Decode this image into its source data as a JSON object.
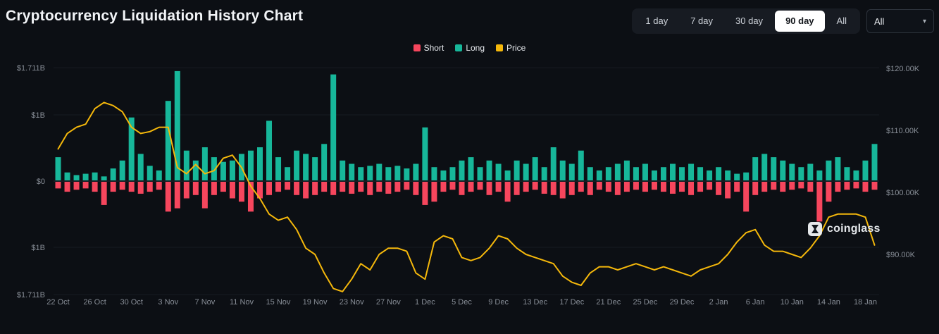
{
  "page": {
    "title": "Cryptocurrency Liquidation History Chart"
  },
  "toolbar": {
    "ranges": [
      "1 day",
      "7 day",
      "30 day",
      "90 day",
      "All"
    ],
    "selected": "90 day",
    "dropdown": {
      "value": "All"
    }
  },
  "legend": {
    "items": [
      {
        "label": "Short",
        "color": "#f6465d"
      },
      {
        "label": "Long",
        "color": "#17b79a"
      },
      {
        "label": "Price",
        "color": "#f5b80b"
      }
    ]
  },
  "watermark": {
    "text": "coinglass"
  },
  "chart_data": {
    "type": "bar",
    "subtype": "diverging-bars-with-line-overlay",
    "title": "Cryptocurrency Liquidation History Chart",
    "legend_position": "top-center",
    "grid": "horizontal-faint",
    "categories": [
      "22 Oct",
      "23 Oct",
      "24 Oct",
      "25 Oct",
      "26 Oct",
      "27 Oct",
      "28 Oct",
      "29 Oct",
      "30 Oct",
      "31 Oct",
      "1 Nov",
      "2 Nov",
      "3 Nov",
      "4 Nov",
      "5 Nov",
      "6 Nov",
      "7 Nov",
      "8 Nov",
      "9 Nov",
      "10 Nov",
      "11 Nov",
      "12 Nov",
      "13 Nov",
      "14 Nov",
      "15 Nov",
      "16 Nov",
      "17 Nov",
      "18 Nov",
      "19 Nov",
      "20 Nov",
      "21 Nov",
      "22 Nov",
      "23 Nov",
      "24 Nov",
      "25 Nov",
      "26 Nov",
      "27 Nov",
      "28 Nov",
      "29 Nov",
      "30 Nov",
      "1 Dec",
      "2 Dec",
      "3 Dec",
      "4 Dec",
      "5 Dec",
      "6 Dec",
      "7 Dec",
      "8 Dec",
      "9 Dec",
      "10 Dec",
      "11 Dec",
      "12 Dec",
      "13 Dec",
      "14 Dec",
      "15 Dec",
      "16 Dec",
      "17 Dec",
      "18 Dec",
      "19 Dec",
      "20 Dec",
      "21 Dec",
      "22 Dec",
      "23 Dec",
      "24 Dec",
      "25 Dec",
      "26 Dec",
      "27 Dec",
      "28 Dec",
      "29 Dec",
      "30 Dec",
      "31 Dec",
      "1 Jan",
      "2 Jan",
      "3 Jan",
      "4 Jan",
      "5 Jan",
      "6 Jan",
      "7 Jan",
      "8 Jan",
      "9 Jan",
      "10 Jan",
      "11 Jan",
      "12 Jan",
      "13 Jan",
      "14 Jan",
      "15 Jan",
      "16 Jan",
      "17 Jan",
      "18 Jan",
      "19 Jan"
    ],
    "series": [
      {
        "name": "Long",
        "type": "bar",
        "direction": "up",
        "color": "#17b79a",
        "unit": "$B",
        "values": [
          0.35,
          0.12,
          0.08,
          0.1,
          0.12,
          0.06,
          0.18,
          0.3,
          0.95,
          0.4,
          0.22,
          0.15,
          1.2,
          1.65,
          0.45,
          0.3,
          0.5,
          0.35,
          0.28,
          0.3,
          0.4,
          0.45,
          0.5,
          0.9,
          0.35,
          0.2,
          0.45,
          0.4,
          0.35,
          0.55,
          1.6,
          0.3,
          0.25,
          0.2,
          0.22,
          0.25,
          0.2,
          0.22,
          0.18,
          0.25,
          0.8,
          0.2,
          0.15,
          0.2,
          0.3,
          0.35,
          0.2,
          0.3,
          0.25,
          0.15,
          0.3,
          0.25,
          0.35,
          0.2,
          0.5,
          0.3,
          0.25,
          0.45,
          0.2,
          0.15,
          0.2,
          0.25,
          0.3,
          0.2,
          0.25,
          0.15,
          0.2,
          0.25,
          0.2,
          0.25,
          0.2,
          0.15,
          0.2,
          0.15,
          0.1,
          0.12,
          0.35,
          0.4,
          0.35,
          0.3,
          0.25,
          0.2,
          0.25,
          0.15,
          0.3,
          0.35,
          0.2,
          0.15,
          0.3,
          0.55
        ]
      },
      {
        "name": "Short",
        "type": "bar",
        "direction": "down",
        "color": "#f6465d",
        "unit": "$B",
        "values": [
          0.1,
          0.15,
          0.12,
          0.1,
          0.15,
          0.35,
          0.15,
          0.12,
          0.15,
          0.18,
          0.15,
          0.12,
          0.45,
          0.4,
          0.25,
          0.2,
          0.4,
          0.2,
          0.15,
          0.25,
          0.3,
          0.45,
          0.25,
          0.2,
          0.15,
          0.12,
          0.2,
          0.25,
          0.2,
          0.15,
          0.2,
          0.15,
          0.18,
          0.15,
          0.2,
          0.15,
          0.18,
          0.15,
          0.12,
          0.2,
          0.35,
          0.3,
          0.15,
          0.12,
          0.2,
          0.15,
          0.12,
          0.2,
          0.15,
          0.3,
          0.2,
          0.15,
          0.12,
          0.18,
          0.2,
          0.25,
          0.2,
          0.15,
          0.2,
          0.12,
          0.15,
          0.2,
          0.15,
          0.12,
          0.15,
          0.12,
          0.15,
          0.18,
          0.15,
          0.2,
          0.15,
          0.12,
          0.2,
          0.25,
          0.15,
          0.45,
          0.2,
          0.15,
          0.12,
          0.15,
          0.12,
          0.1,
          0.15,
          0.6,
          0.3,
          0.15,
          0.12,
          0.1,
          0.15,
          0.12
        ]
      },
      {
        "name": "Price",
        "type": "line",
        "axis": "right",
        "color": "#f5b80b",
        "unit": "$K",
        "values": [
          107.0,
          109.5,
          110.5,
          111.0,
          113.5,
          114.5,
          114.0,
          113.0,
          110.5,
          109.5,
          109.8,
          110.5,
          110.5,
          104.0,
          103.0,
          104.5,
          103.0,
          103.5,
          105.5,
          106.0,
          104.0,
          101.0,
          99.0,
          96.5,
          95.5,
          96.0,
          94.0,
          91.0,
          90.0,
          87.0,
          84.5,
          84.0,
          86.0,
          88.5,
          87.5,
          90.0,
          91.0,
          91.0,
          90.5,
          87.0,
          86.0,
          92.0,
          93.0,
          92.5,
          89.5,
          89.0,
          89.5,
          91.0,
          93.0,
          92.5,
          91.0,
          90.0,
          89.5,
          89.0,
          88.5,
          86.5,
          85.5,
          85.0,
          87.0,
          88.0,
          88.0,
          87.5,
          88.0,
          88.5,
          88.0,
          87.5,
          88.0,
          87.5,
          87.0,
          86.5,
          87.5,
          88.0,
          88.5,
          90.0,
          92.0,
          93.5,
          94.0,
          91.5,
          90.5,
          90.5,
          90.0,
          89.5,
          91.0,
          93.0,
          96.0,
          96.5,
          96.5,
          96.5,
          96.0,
          91.5
        ]
      }
    ],
    "left_axis": {
      "labels": [
        "$1.711B",
        "$1B",
        "$0",
        "$1B",
        "$1.711B"
      ],
      "values_b": [
        1.711,
        1,
        0,
        -1,
        -1.711
      ]
    },
    "right_axis": {
      "labels": [
        "$120.00K",
        "$110.00K",
        "$100.00K",
        "$90.00K"
      ],
      "values_k": [
        120,
        110,
        100,
        90
      ]
    },
    "x_ticks": [
      "22 Oct",
      "26 Oct",
      "30 Oct",
      "3 Nov",
      "7 Nov",
      "11 Nov",
      "15 Nov",
      "19 Nov",
      "23 Nov",
      "27 Nov",
      "1 Dec",
      "5 Dec",
      "9 Dec",
      "13 Dec",
      "17 Dec",
      "21 Dec",
      "25 Dec",
      "29 Dec",
      "2 Jan",
      "6 Jan",
      "10 Jan",
      "14 Jan",
      "18 Jan"
    ]
  }
}
